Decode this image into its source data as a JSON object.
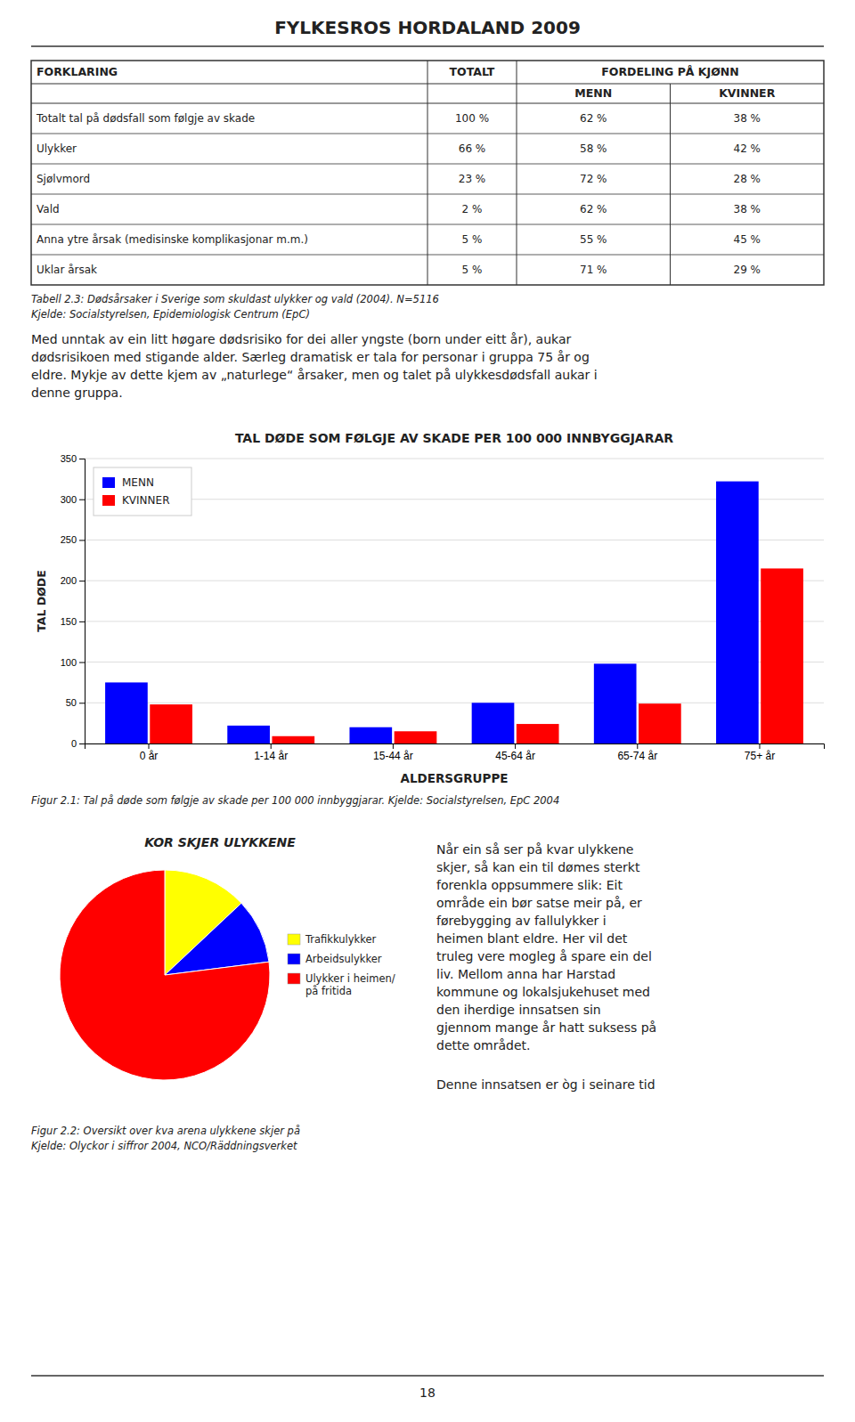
{
  "page_title": "FYLKESROS HORDALAND 2009",
  "table": {
    "header_row1": [
      "FORKLARING",
      "TOTALT",
      "FORDELING PÅ KJØNN"
    ],
    "header_row2": [
      "MENN",
      "KVINNER"
    ],
    "rows": [
      [
        "Totalt tal på dødsfall som følgje av skade",
        "100 %",
        "62 %",
        "38 %"
      ],
      [
        "Ulykker",
        "66 %",
        "58 %",
        "42 %"
      ],
      [
        "Sjølvmord",
        "23 %",
        "72 %",
        "28 %"
      ],
      [
        "Vald",
        "2 %",
        "62 %",
        "38 %"
      ],
      [
        "Anna ytre årsak (medisinske komplikasjonar m.m.)",
        "5 %",
        "55 %",
        "45 %"
      ],
      [
        "Uklar årsak",
        "5 %",
        "71 %",
        "29 %"
      ]
    ],
    "caption": [
      "Tabell 2.3: Dødsårsaker i Sverige som skuldast ulykker og vald (2004). N=5116",
      "Kjelde: Socialstyrelsen, Epidemiologisk Centrum (EpC)"
    ]
  },
  "body_lines": [
    "Med unntak av ein litt høgare dødsrisiko for dei aller yngste (born under eitt år), aukar",
    "dødsrisikoen med stigande alder. Særleg dramatisk er tala for personar i gruppa 75 år og",
    "eldre. Mykje av dette kjem av „naturlege“ årsaker, men og talet på ulykkesdødsfall aukar i",
    "denne gruppa."
  ],
  "chart_data": [
    {
      "type": "bar",
      "title": "TAL DØDE SOM FØLGJE AV SKADE PER 100 000 INNBYGGJARAR",
      "x_label": "ALDERSGRUPPE",
      "y_label": "TAL DØDE",
      "categories": [
        "0 år",
        "1-14 år",
        "15-44 år",
        "45-64 år",
        "65-74 år",
        "75+ år"
      ],
      "series": [
        {
          "name": "MENN",
          "color": "#0000FF",
          "values": [
            75,
            22,
            20,
            50,
            98,
            322
          ]
        },
        {
          "name": "KVINNER",
          "color": "#FF0000",
          "values": [
            48,
            9,
            15,
            24,
            49,
            215
          ]
        }
      ],
      "ylim": [
        0,
        350
      ],
      "yticks": [
        0,
        50,
        100,
        150,
        200,
        250,
        300,
        350
      ],
      "grid": true,
      "legend": "upper left",
      "caption": "Figur 2.1: Tal på døde som følgje av skade per 100 000 innbyggjarar. Kjelde: Socialstyrelsen, EpC 2004"
    },
    {
      "type": "pie",
      "title": "KOR SKJER ULYKKENE",
      "categories": [
        "Trafikkulykker",
        "Arbeidsulykker",
        "Ulykker i heimen/\npå fritida"
      ],
      "values": [
        13,
        10,
        77
      ],
      "colors": [
        "#FFFF00",
        "#0000FF",
        "#FF0000"
      ],
      "legend": "right",
      "caption": [
        "Figur 2.2: Oversikt over kva arena ulykkene skjer på",
        "Kjelde: Olyckor i siffror 2004, NCO/Räddningsverket"
      ]
    }
  ],
  "right_text_lines": [
    "Når ein så ser på kvar ulykkene",
    "skjer, så kan ein til dømes sterkt",
    "forenkla oppsummere slik: Eit",
    "område ein bør satse meir på, er",
    "førebygging av fallulykker i",
    "heimen blant eldre. Her vil det",
    "truleg vere mogleg å spare ein del",
    "liv. Mellom anna har Harstad",
    "kommune og lokalsjukehuset med",
    "den iherdige innsatsen sin",
    "gjennom mange år hatt suksess på",
    "dette området."
  ],
  "right_text2": "Denne innsatsen er òg i seinare tid",
  "page_number": "18"
}
